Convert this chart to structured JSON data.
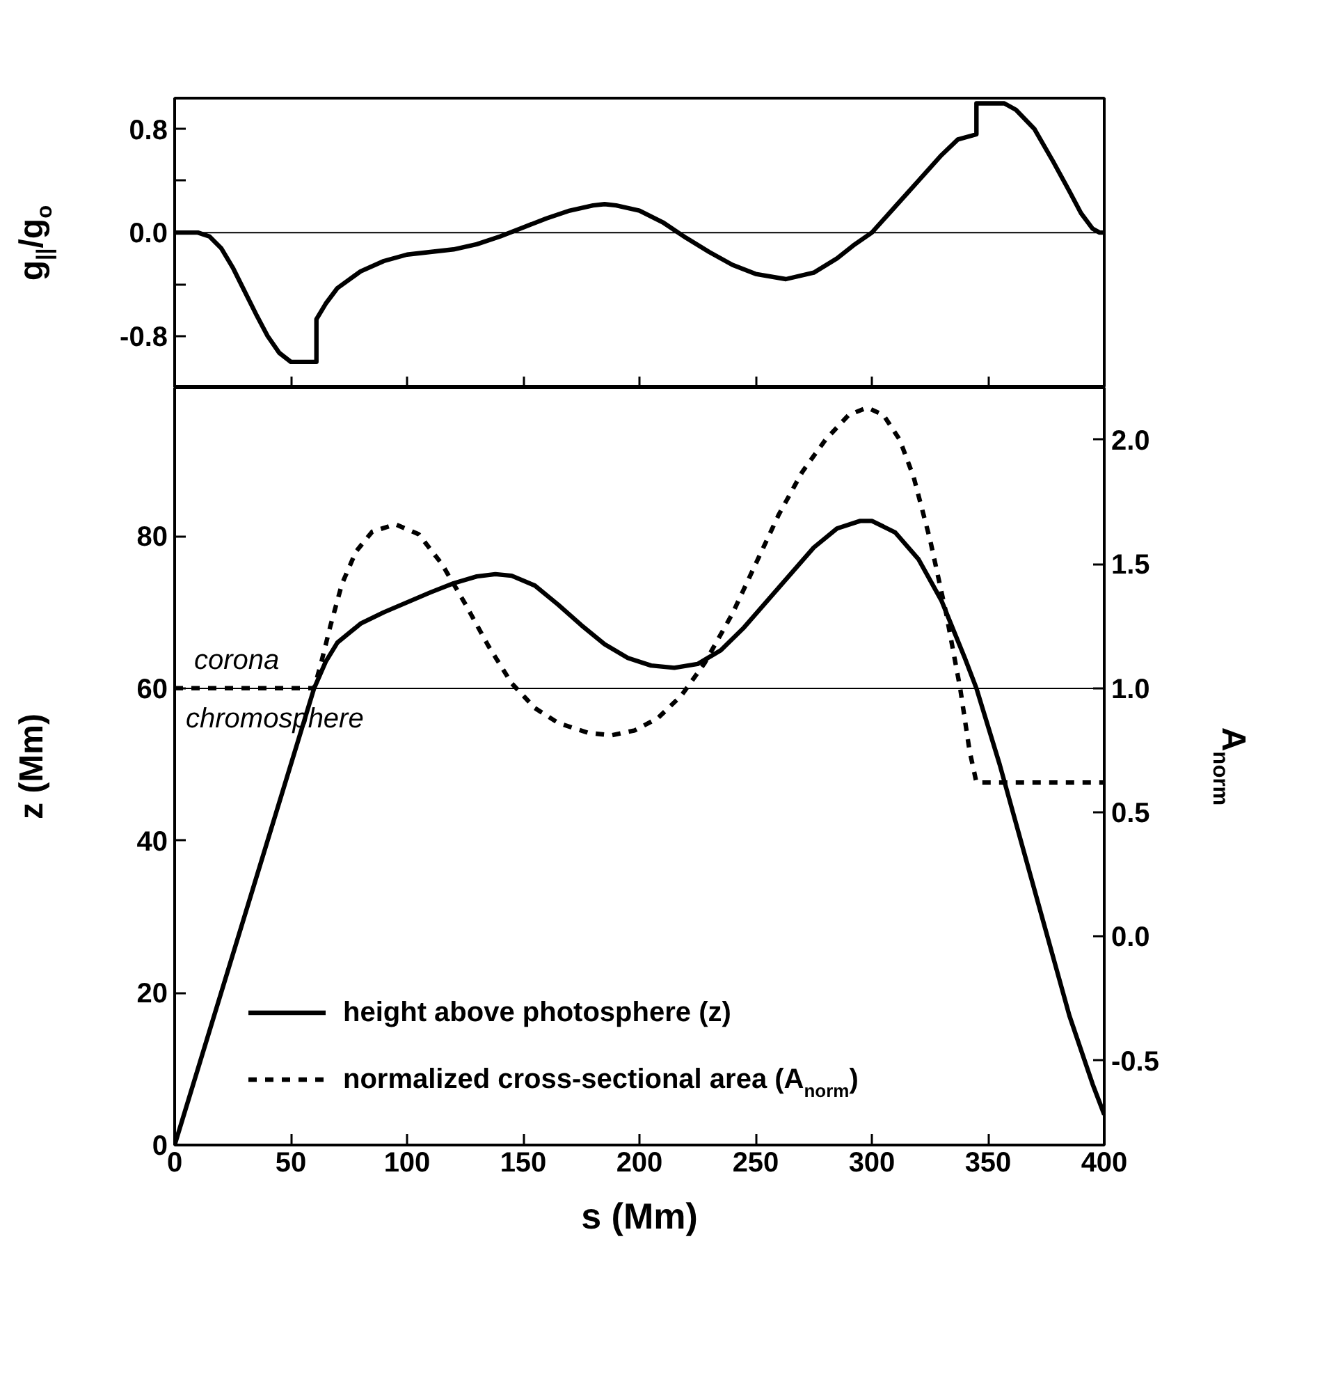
{
  "chart_data": [
    {
      "type": "line",
      "ylabel": "g$_{||}$/g$_{o}$",
      "xlim": [
        0,
        400
      ],
      "xticks": [
        0,
        50,
        100,
        150,
        200,
        250,
        300,
        350,
        400
      ],
      "ylim": [
        -1.2,
        1.04
      ],
      "yticks": [
        {
          "value": -0.8,
          "label": "-0.8"
        },
        {
          "value": -0.4,
          "label": null
        },
        {
          "value": 0,
          "label": "0.0"
        },
        {
          "value": 0.4,
          "label": null
        },
        {
          "value": 0.8,
          "label": "0.8"
        }
      ],
      "tick_labels": "y",
      "ref_lines": [
        {
          "axis": "y",
          "value": 0
        }
      ],
      "series": [
        {
          "color": "#000000",
          "x": [
            0,
            10,
            15,
            20,
            25,
            30,
            35,
            40,
            45,
            50,
            61,
            61,
            65,
            70,
            80,
            90,
            100,
            110,
            120,
            130,
            140,
            150,
            160,
            170,
            180,
            185,
            190,
            200,
            210,
            220,
            230,
            240,
            250,
            263,
            275,
            285,
            292,
            300,
            310,
            320,
            330,
            337,
            345,
            345,
            357,
            362,
            370,
            378,
            385,
            390,
            395,
            398,
            400
          ],
          "values": [
            0,
            0,
            -0.03,
            -0.12,
            -0.27,
            -0.45,
            -0.63,
            -0.8,
            -0.93,
            -1.0,
            -1.0,
            -0.67,
            -0.55,
            -0.43,
            -0.3,
            -0.22,
            -0.17,
            -0.15,
            -0.13,
            -0.09,
            -0.03,
            0.04,
            0.11,
            0.17,
            0.21,
            0.22,
            0.21,
            0.17,
            0.08,
            -0.04,
            -0.15,
            -0.25,
            -0.32,
            -0.36,
            -0.31,
            -0.2,
            -0.1,
            0.0,
            0.2,
            0.4,
            0.6,
            0.72,
            0.76,
            1.0,
            1.0,
            0.95,
            0.8,
            0.55,
            0.32,
            0.15,
            0.03,
            0,
            0
          ]
        }
      ]
    },
    {
      "type": "line",
      "xlabel": "s (Mm)",
      "ylabel": "z (Mm)",
      "y2label": "A$_{norm}$",
      "xlim": [
        0,
        400
      ],
      "xticks": [
        0,
        50,
        100,
        150,
        200,
        250,
        300,
        350,
        400
      ],
      "ylim": [
        0,
        99.5
      ],
      "yticks": [
        0,
        20,
        40,
        60,
        80
      ],
      "y2lim": [
        -0.84,
        2.21
      ],
      "y2ticks": [
        {
          "value": -0.5,
          "label": "-0.5"
        },
        {
          "value": 0,
          "label": "0.0"
        },
        {
          "value": 0.5,
          "label": "0.5"
        },
        {
          "value": 1,
          "label": "1.0"
        },
        {
          "value": 1.5,
          "label": "1.5"
        },
        {
          "value": 2,
          "label": "2.0"
        }
      ],
      "ref_lines": [
        {
          "axis": "y",
          "value": 60
        }
      ],
      "annotations": [
        "corona",
        "chromosphere"
      ],
      "legend": "bottom left",
      "series": [
        {
          "name": "height above photosphere (z)",
          "color": "#000000",
          "line_style": "solid",
          "x": [
            0,
            60,
            65,
            70,
            80,
            90,
            100,
            110,
            120,
            130,
            138,
            145,
            155,
            165,
            175,
            185,
            195,
            205,
            215,
            225,
            235,
            245,
            255,
            265,
            275,
            285,
            295,
            300,
            310,
            320,
            330,
            340,
            345,
            355,
            365,
            375,
            385,
            395,
            400
          ],
          "values": [
            0,
            60,
            63.5,
            66,
            68.5,
            70,
            71.3,
            72.6,
            73.8,
            74.7,
            75,
            74.8,
            73.5,
            71,
            68.3,
            65.8,
            64,
            63,
            62.7,
            63.2,
            65,
            68,
            71.5,
            75,
            78.5,
            81,
            82,
            82,
            80.5,
            77,
            71.5,
            64,
            60,
            50,
            39,
            28,
            17,
            8,
            4
          ]
        },
        {
          "name": "normalized cross-sectional area (A$_{norm}$)",
          "color": "#000000",
          "line_style": "dashed",
          "axis": "y2",
          "x": [
            0,
            60,
            63,
            67,
            72,
            78,
            85,
            95,
            105,
            115,
            125,
            135,
            145,
            155,
            165,
            178,
            188,
            198,
            208,
            218,
            228,
            240,
            250,
            260,
            270,
            280,
            290,
            298,
            305,
            312,
            318,
            325,
            332,
            338,
            342,
            345,
            400
          ],
          "values": [
            1.0,
            1.0,
            1.1,
            1.25,
            1.42,
            1.55,
            1.63,
            1.66,
            1.62,
            1.5,
            1.34,
            1.17,
            1.02,
            0.92,
            0.86,
            0.82,
            0.81,
            0.83,
            0.88,
            0.97,
            1.1,
            1.3,
            1.5,
            1.7,
            1.87,
            2.0,
            2.1,
            2.13,
            2.1,
            2.0,
            1.85,
            1.6,
            1.3,
            1.0,
            0.75,
            0.62,
            0.62
          ]
        }
      ]
    }
  ]
}
